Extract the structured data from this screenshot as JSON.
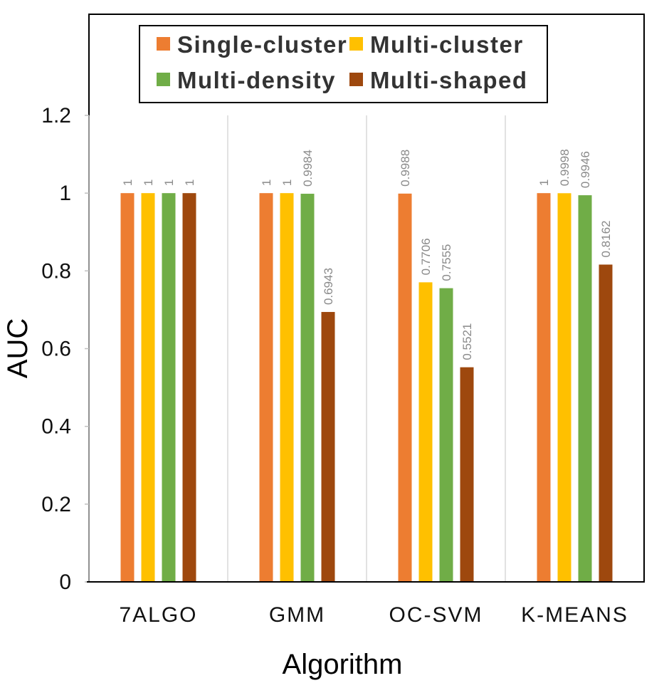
{
  "chart_data": {
    "type": "bar",
    "title": "",
    "xlabel": "Algorithm",
    "ylabel": "AUC",
    "ylim": [
      0,
      1.2
    ],
    "yticks": [
      "0",
      "0.2",
      "0.4",
      "0.6",
      "0.8",
      "1",
      "1.2"
    ],
    "categories": [
      "7ALGO",
      "GMM",
      "OC-SVM",
      "K-MEANS"
    ],
    "series": [
      {
        "name": "Single-cluster",
        "color": "#ED7D31",
        "values": [
          1,
          1,
          0.9988,
          1
        ],
        "labels": [
          "1",
          "1",
          "0.9988",
          "1"
        ]
      },
      {
        "name": "Multi-cluster",
        "color": "#FFC000",
        "values": [
          1,
          1,
          0.7706,
          0.9998
        ],
        "labels": [
          "1",
          "1",
          "0.7706",
          "0.9998"
        ]
      },
      {
        "name": "Multi-density",
        "color": "#70AD47",
        "values": [
          1,
          0.9984,
          0.7555,
          0.9946
        ],
        "labels": [
          "1",
          "0.9984",
          "0.7555",
          "0.9946"
        ]
      },
      {
        "name": "Multi-shaped",
        "color": "#9E480E",
        "values": [
          1,
          0.6943,
          0.5521,
          0.8162
        ],
        "labels": [
          "1",
          "0.6943",
          "0.5521",
          "0.8162"
        ]
      }
    ],
    "grid": "vertical separators",
    "legend": "top-center"
  }
}
